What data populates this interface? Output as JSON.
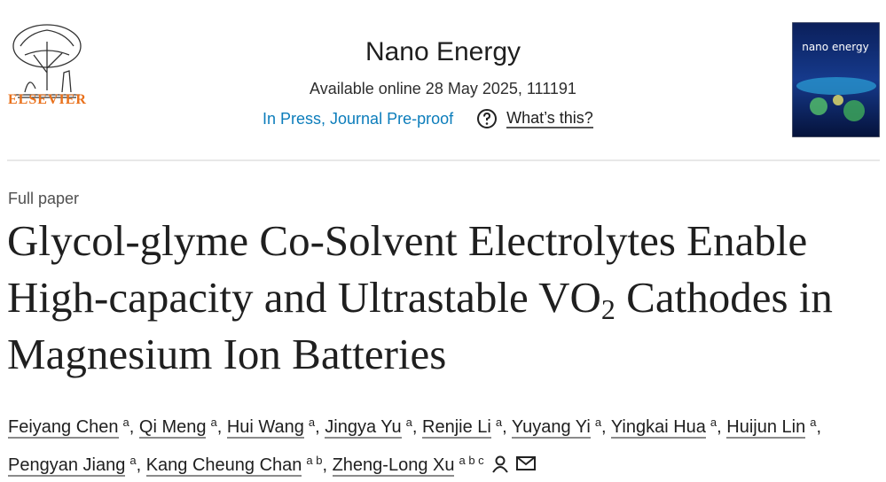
{
  "publisher": {
    "name": "ELSEVIER"
  },
  "header": {
    "journal": "Nano Energy",
    "availability": "Available online 28 May 2025, 111191",
    "status": "In Press, Journal Pre-proof",
    "help_link": "What’s this?"
  },
  "cover": {
    "title": "nano energy"
  },
  "article": {
    "type": "Full paper",
    "title_parts": [
      "Glycol-glyme Co-Solvent Electrolytes Enable High-capacity and Ultrastable VO",
      "2",
      " Cathodes in Magnesium Ion Batteries"
    ],
    "author_separator": ",",
    "authors": [
      {
        "name": "Feiyang Chen",
        "affiliations": "a"
      },
      {
        "name": "Qi Meng",
        "affiliations": "a"
      },
      {
        "name": "Hui Wang",
        "affiliations": "a"
      },
      {
        "name": "Jingya Yu",
        "affiliations": "a"
      },
      {
        "name": "Renjie Li",
        "affiliations": "a"
      },
      {
        "name": "Yuyang Yi",
        "affiliations": "a"
      },
      {
        "name": "Yingkai Hua",
        "affiliations": "a"
      },
      {
        "name": "Huijun Lin",
        "affiliations": "a"
      },
      {
        "name": "Pengyan Jiang",
        "affiliations": "a"
      },
      {
        "name": "Kang Cheung Chan",
        "affiliations": "a b"
      },
      {
        "name": "Zheng-Long Xu",
        "affiliations": "a b c"
      }
    ]
  }
}
